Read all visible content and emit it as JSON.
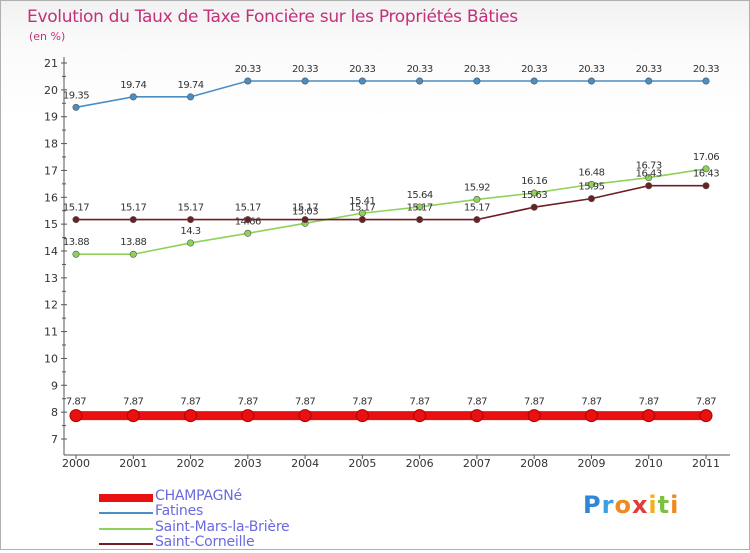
{
  "title": "Evolution du Taux de Taxe Foncière sur les Propriétés Bâties",
  "subtitle": "(en %)",
  "logo_text": "Proxiti",
  "chart_data": {
    "type": "line",
    "title": "Evolution du Taux de Taxe Foncière sur les Propriétés Bâties",
    "ylabel": "(en %)",
    "xlabel": "",
    "ylim": [
      7,
      21
    ],
    "yticks": [
      7,
      8,
      9,
      10,
      11,
      12,
      13,
      14,
      15,
      16,
      17,
      18,
      19,
      20,
      21
    ],
    "grid": false,
    "legend": "bottom-left",
    "x": [
      "2000",
      "2001",
      "2002",
      "2003",
      "2004",
      "2005",
      "2006",
      "2007",
      "2008",
      "2009",
      "2010",
      "2011"
    ],
    "series": [
      {
        "name": "CHAMPAGNé",
        "color": "#e81010",
        "values": [
          7.87,
          7.87,
          7.87,
          7.87,
          7.87,
          7.87,
          7.87,
          7.87,
          7.87,
          7.87,
          7.87,
          7.87
        ]
      },
      {
        "name": "Fatines",
        "color": "#4a8ec6",
        "values": [
          19.35,
          19.74,
          19.74,
          20.33,
          20.33,
          20.33,
          20.33,
          20.33,
          20.33,
          20.33,
          20.33,
          20.33
        ]
      },
      {
        "name": "Saint-Mars-la-Brière",
        "color": "#8ed25a",
        "values": [
          13.88,
          13.88,
          14.3,
          14.66,
          15.03,
          15.41,
          15.64,
          15.92,
          16.16,
          16.48,
          16.73,
          17.06
        ]
      },
      {
        "name": "Saint-Corneille",
        "color": "#6e1f22",
        "values": [
          15.17,
          15.17,
          15.17,
          15.17,
          15.17,
          15.17,
          15.17,
          15.17,
          15.63,
          15.95,
          16.43,
          16.43
        ]
      }
    ]
  }
}
